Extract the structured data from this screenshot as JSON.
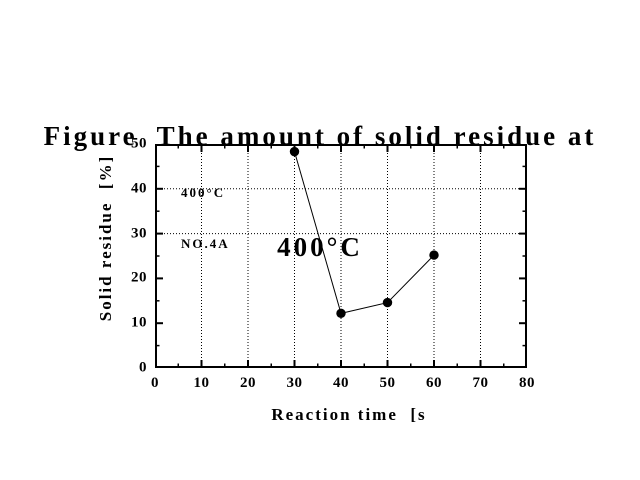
{
  "figure": {
    "title_line1": "Figure  The amount of solid residue at",
    "title_line2": "400°C"
  },
  "chart_data": {
    "type": "line",
    "title": "Figure  The amount of solid residue at 400°C",
    "x": [
      30,
      40,
      50,
      60
    ],
    "y": [
      48.3,
      12.2,
      14.6,
      25.2
    ],
    "xlabel": "Reaction time  [s",
    "ylabel": "Solid residue  [%]",
    "xlim": [
      0,
      80
    ],
    "ylim": [
      0,
      50
    ],
    "x_major_ticks": [
      0,
      10,
      20,
      30,
      40,
      50,
      60,
      70,
      80
    ],
    "x_minor_step": 5,
    "y_major_ticks": [
      0,
      10,
      20,
      30,
      40,
      50
    ],
    "y_minor_step": 5,
    "x_gridlines": [
      10,
      20,
      30,
      40,
      50,
      60,
      70
    ],
    "y_gridlines": [
      30,
      40
    ],
    "grid_style": "dotted",
    "legend_position": "top-left-inside",
    "marker": "filled-circle",
    "annotation": {
      "line1": "400°C",
      "line2": "NO.4A"
    },
    "colors": {
      "line": "#000000",
      "marker": "#000000",
      "text": "#000000",
      "background": "#ffffff"
    }
  }
}
